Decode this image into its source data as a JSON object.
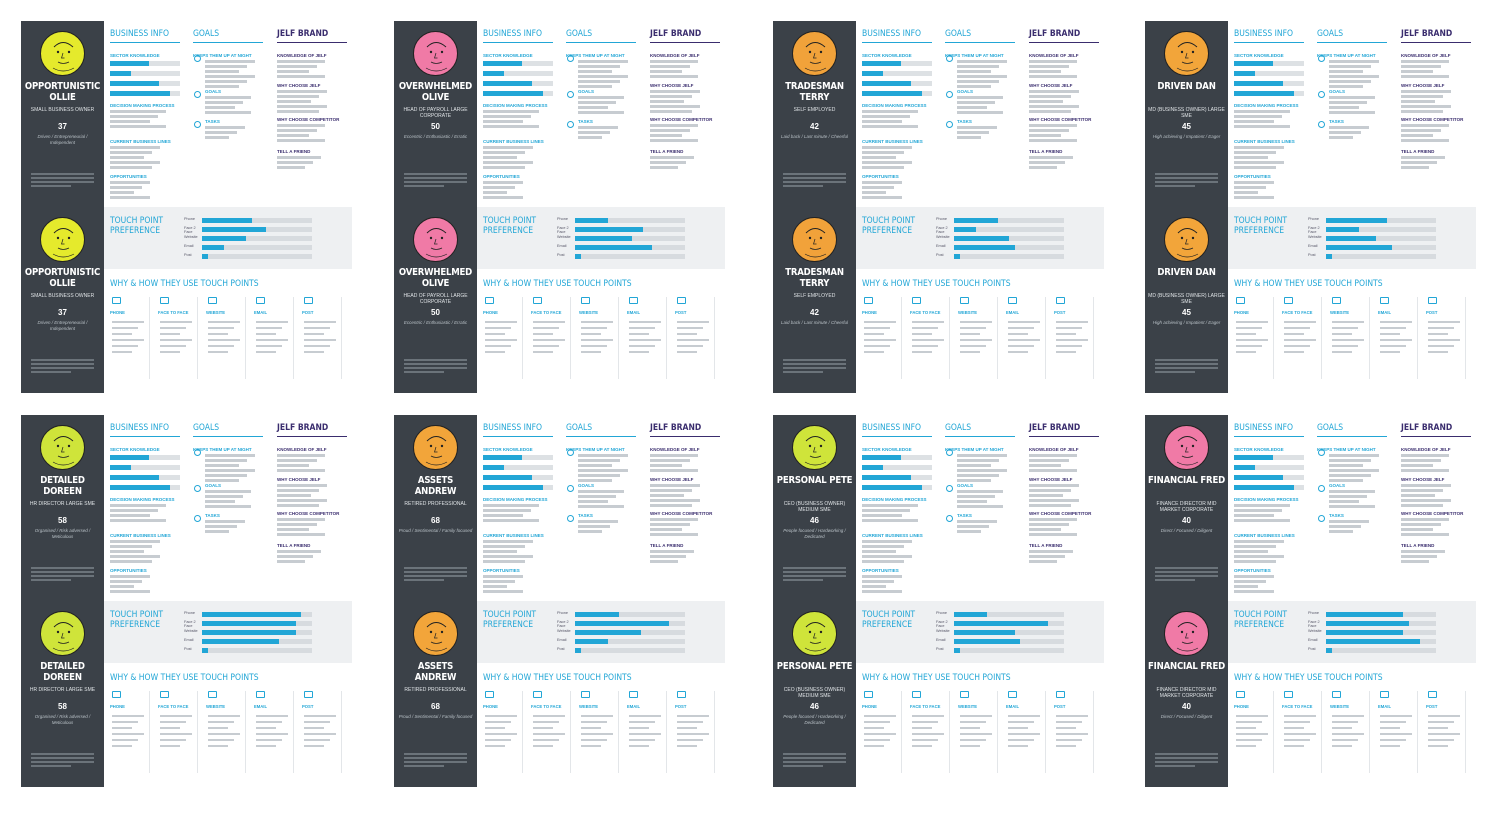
{
  "labels": {
    "business_info": "BUSINESS INFO",
    "goals": "GOALS",
    "brand": "JELF BRAND",
    "touch_point": "TOUCH POINT PREFERENCE",
    "why_how": "WHY & HOW THEY USE TOUCH POINTS",
    "sector_knowledge": "SECTOR KNOWLEDGE",
    "decision_making": "DECISION MAKING PROCESS",
    "current_lines": "CURRENT BUSINESS LINES",
    "opportunities": "OPPORTUNITIES",
    "keeps_up": "KEEPS THEM UP AT NIGHT",
    "goals_sub": "GOALS",
    "tasks": "TASKS",
    "knowledge_of_jelf": "KNOWLEDGE OF JELF",
    "why_choose_jelf": "WHY CHOOSE JELF",
    "why_choose_competitor": "WHY CHOOSE COMPETITOR",
    "tell_a_friend": "TELL A FRIEND"
  },
  "channels": [
    "PHONE",
    "FACE TO FACE",
    "WEBSITE",
    "EMAIL",
    "POST"
  ],
  "tp_rows": [
    "Phone",
    "Face 2 Face",
    "Website",
    "Email",
    "Post"
  ],
  "personas": [
    {
      "name": "OPPORTUNISTIC OLLIE",
      "role": "SMALL BUSINESS OWNER",
      "age": "37",
      "traits": "Driven / Entrepreneurial / Independent",
      "color": "#e5ea2c",
      "tp": [
        0.45,
        0.58,
        0.4,
        0.2,
        0.05
      ]
    },
    {
      "name": "OVERWHELMED OLIVE",
      "role": "HEAD OF PAYROLL LARGE CORPORATE",
      "age": "50",
      "traits": "Eccentric / Enthusiastic / Erratic",
      "color": "#f07aa6",
      "tp": [
        0.3,
        0.62,
        0.52,
        0.7,
        0.05
      ]
    },
    {
      "name": "TRADESMAN TERRY",
      "role": "SELF EMPLOYED",
      "age": "42",
      "traits": "Laid back / Last minute / Cheerful",
      "color": "#f1a23a",
      "tp": [
        0.4,
        0.2,
        0.5,
        0.55,
        0.05
      ]
    },
    {
      "name": "DRIVEN DAN",
      "role": "MD (BUSINESS OWNER) LARGE SME",
      "age": "45",
      "traits": "High achieving / Impatient / Eager",
      "color": "#f2a53a",
      "tp": [
        0.55,
        0.3,
        0.45,
        0.6,
        0.05
      ]
    },
    {
      "name": "DETAILED DOREEN",
      "role": "HR DIRECTOR LARGE SME",
      "age": "58",
      "traits": "Organised / Risk adversed / Meticulous",
      "color": "#cfe43a",
      "tp": [
        0.9,
        0.85,
        0.85,
        0.7,
        0.05
      ]
    },
    {
      "name": "ASSETS ANDREW",
      "role": "RETIRED PROFESSIONAL",
      "age": "68",
      "traits": "Proud / Sentimental / Family focused",
      "color": "#f2a53a",
      "tp": [
        0.4,
        0.85,
        0.6,
        0.3,
        0.05
      ]
    },
    {
      "name": "PERSONAL PETE",
      "role": "CEO (BUSINESS OWNER) MEDIUM SME",
      "age": "46",
      "traits": "People focused / Hardworking / Dedicated",
      "color": "#cfe43a",
      "tp": [
        0.3,
        0.85,
        0.55,
        0.6,
        0.05
      ]
    },
    {
      "name": "FINANCIAL FRED",
      "role": "FINANCE DIRECTOR MID MARKET CORPORATE",
      "age": "40",
      "traits": "Direct / Focused / Diligent",
      "color": "#f07aa6",
      "tp": [
        0.7,
        0.75,
        0.7,
        0.85,
        0.05
      ]
    }
  ]
}
